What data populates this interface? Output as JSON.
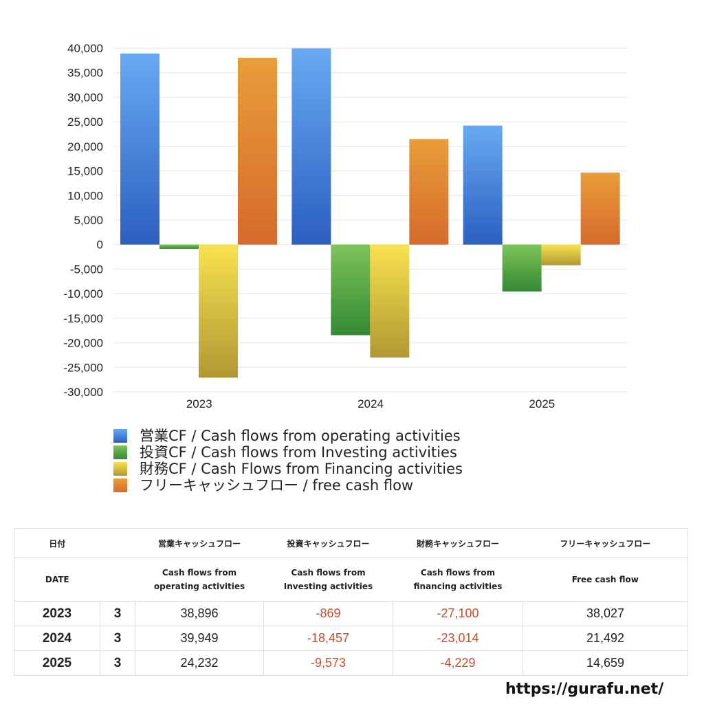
{
  "chart_data": {
    "type": "bar",
    "categories": [
      "2023",
      "2024",
      "2025"
    ],
    "series": [
      {
        "name": "営業CF / Cash flows from operating activities",
        "values": [
          38896,
          39949,
          24232
        ],
        "color_top": "#69a9f2",
        "color_bottom": "#2b5fc0"
      },
      {
        "name": "投資CF / Cash flows from Investing activities",
        "values": [
          -869,
          -18457,
          -9573
        ],
        "color_top": "#7dc35a",
        "color_bottom": "#348a33"
      },
      {
        "name": "財務CF / Cash Flows from Financing activities",
        "values": [
          -27100,
          -23014,
          -4229
        ],
        "color_top": "#f8e24f",
        "color_bottom": "#b29833"
      },
      {
        "name": "フリーキャッシュフロー / free cash flow",
        "values": [
          38027,
          21492,
          14659
        ],
        "color_top": "#e89d3a",
        "color_bottom": "#d66a2b"
      }
    ],
    "ylim": [
      -30000,
      40000
    ],
    "yticks": [
      "40,000",
      "35,000",
      "30,000",
      "25,000",
      "20,000",
      "15,000",
      "10,000",
      "5,000",
      "0",
      "-5,000",
      "-10,000",
      "-15,000",
      "-20,000",
      "-25,000",
      "-30,000"
    ],
    "ytick_values": [
      40000,
      35000,
      30000,
      25000,
      20000,
      15000,
      10000,
      5000,
      0,
      -5000,
      -10000,
      -15000,
      -20000,
      -25000,
      -30000
    ],
    "grid": true,
    "legend_position": "bottom-left"
  },
  "table": {
    "header_ja": [
      "日付",
      "営業キャッシュフロー",
      "投資キャッシュフロー",
      "財務キャッシュフロー",
      "フリーキャッシュフロー"
    ],
    "header_en": {
      "date": "DATE",
      "operating": [
        "Cash flows from",
        "operating activities"
      ],
      "investing": [
        "Cash flows from",
        "Investing activities"
      ],
      "financing": [
        "Cash flows from",
        "financing activities"
      ],
      "free": "Free cash flow"
    },
    "rows": [
      {
        "year": "2023",
        "month": "3",
        "operating": "38,896",
        "investing": "-869",
        "financing": "-27,100",
        "free": "38,027"
      },
      {
        "year": "2024",
        "month": "3",
        "operating": "39,949",
        "investing": "-18,457",
        "financing": "-23,014",
        "free": "21,492"
      },
      {
        "year": "2025",
        "month": "3",
        "operating": "24,232",
        "investing": "-9,573",
        "financing": "-4,229",
        "free": "14,659"
      }
    ]
  },
  "footer": {
    "url": "https://gurafu.net/"
  }
}
